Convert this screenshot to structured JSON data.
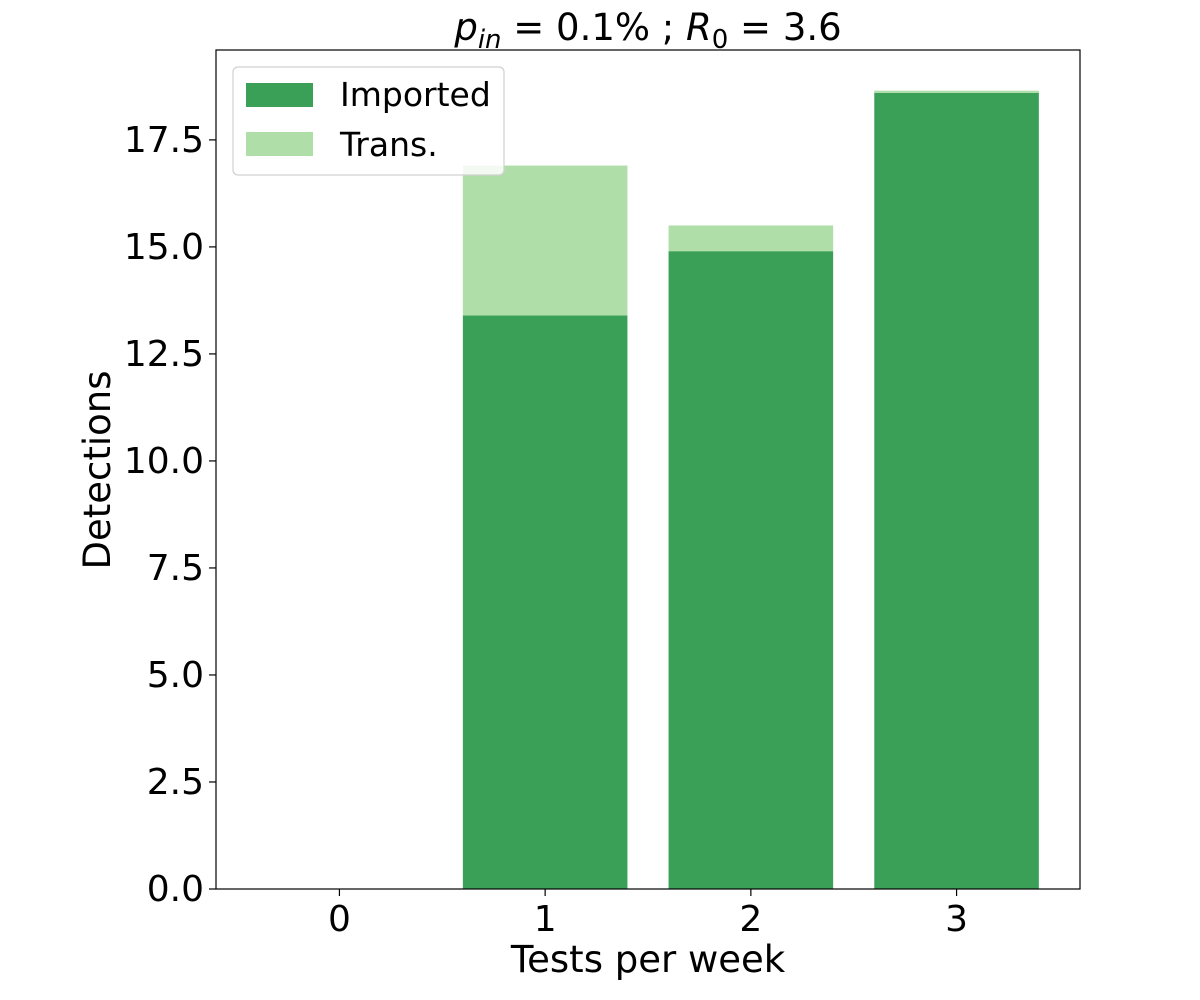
{
  "chart_data": {
    "type": "bar",
    "stacked": true,
    "title": {
      "p_symbol": "p",
      "p_subscript": "in",
      "p_value": " = 0.1% ; ",
      "r_symbol": "R",
      "r_subscript": "0",
      "r_value": " = 3.6"
    },
    "xlabel": "Tests per week",
    "ylabel": "Detections",
    "categories": [
      "0",
      "1",
      "2",
      "3"
    ],
    "series": [
      {
        "name": "Imported",
        "color": "#3aa057",
        "values": [
          0,
          13.4,
          14.9,
          18.6
        ]
      },
      {
        "name": "Trans.",
        "color": "#afdea8",
        "values": [
          0,
          3.5,
          0.6,
          0.05
        ]
      }
    ],
    "ylim": [
      0,
      19.6
    ],
    "yticks": [
      "0.0",
      "2.5",
      "5.0",
      "7.5",
      "10.0",
      "12.5",
      "15.0",
      "17.5"
    ],
    "xlim": [
      -0.6,
      3.6
    ],
    "bar_width": 0.8,
    "grid": false,
    "legend_position": "top-left"
  }
}
